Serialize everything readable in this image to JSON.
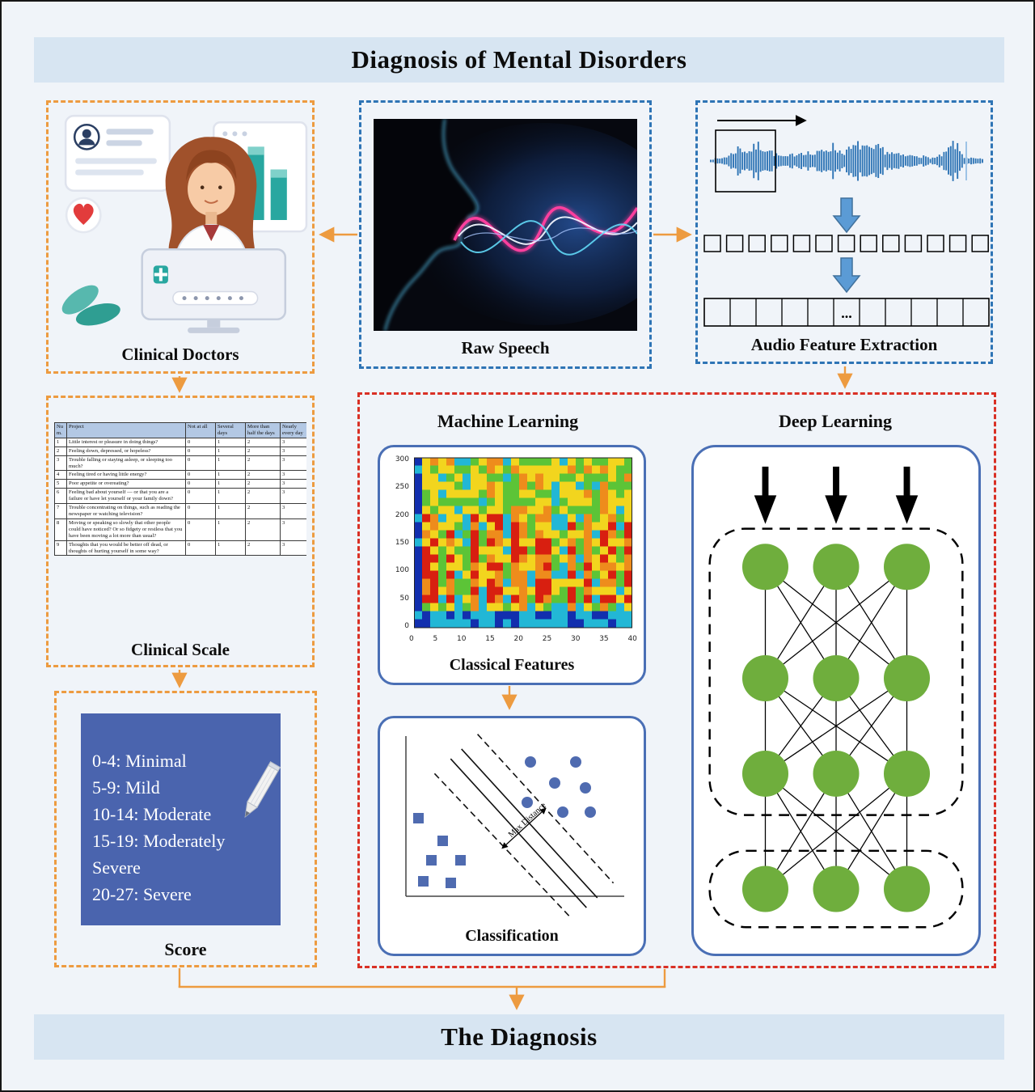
{
  "header": {
    "title": "Diagnosis of Mental Disorders"
  },
  "footer": {
    "label": "The Diagnosis"
  },
  "panels": {
    "clinical_doctors": {
      "label": "Clinical Doctors"
    },
    "raw_speech": {
      "label": "Raw Speech"
    },
    "audio": {
      "label": "Audio Feature Extraction",
      "ellipsis": "..."
    },
    "clinical_scale": {
      "label": "Clinical Scale",
      "table": {
        "headers": [
          "Num.",
          "Project",
          "Not at all",
          "Several days",
          "More than half the days",
          "Nearly every day"
        ],
        "rows": [
          {
            "num": "1",
            "project": "Little interest or pleasure in doing things?",
            "values": [
              "0",
              "1",
              "2",
              "3"
            ]
          },
          {
            "num": "2",
            "project": "Feeling down, depressed, or hopeless?",
            "values": [
              "0",
              "1",
              "2",
              "3"
            ]
          },
          {
            "num": "3",
            "project": "Trouble falling or staying asleep, or sleeping too much?",
            "values": [
              "0",
              "1",
              "2",
              "3"
            ]
          },
          {
            "num": "4",
            "project": "Feeling tired or having little energy?",
            "values": [
              "0",
              "1",
              "2",
              "3"
            ]
          },
          {
            "num": "5",
            "project": "Poor appetite or overeating?",
            "values": [
              "0",
              "1",
              "2",
              "3"
            ]
          },
          {
            "num": "6",
            "project": "Feeling bad about yourself — or that you are a failure or have let yourself or your family down?",
            "values": [
              "0",
              "1",
              "2",
              "3"
            ]
          },
          {
            "num": "7",
            "project": "Trouble concentrating on things, such as reading the newspaper or watching television?",
            "values": [
              "0",
              "1",
              "2",
              "3"
            ]
          },
          {
            "num": "8",
            "project": "Moving or speaking so slowly that other people could have noticed? Or so fidgety or restless that you have been moving a lot more than usual?",
            "values": [
              "0",
              "1",
              "2",
              "3"
            ]
          },
          {
            "num": "9",
            "project": "Thoughts that you would be better off dead, or thoughts of hurting yourself in some way?",
            "values": [
              "0",
              "1",
              "2",
              "3"
            ]
          }
        ]
      }
    },
    "score": {
      "label": "Score",
      "lines": [
        "0-4: Minimal",
        "5-9: Mild",
        "10-14: Moderate",
        "15-19: Moderately",
        "Severe",
        "20-27: Severe"
      ]
    }
  },
  "ml": {
    "heading": "Machine Learning",
    "classical_features": {
      "label": "Classical Features",
      "y_ticks": [
        "300",
        "250",
        "200",
        "150",
        "100",
        "50",
        "0"
      ],
      "x_ticks": [
        "0",
        "5",
        "10",
        "15",
        "20",
        "25",
        "30",
        "35",
        "40"
      ]
    },
    "classification": {
      "label": "Classification",
      "annotation": "Max Distance"
    }
  },
  "dl": {
    "heading": "Deep Learning"
  },
  "colors": {
    "accent_orange": "#ED9B40",
    "accent_blue": "#2E74B5",
    "accent_red": "#D93025",
    "node_green": "#6FAE3D",
    "score_blue": "#4A64AE",
    "banner_blue": "#D7E5F2",
    "waveform_blue": "#2E74B5"
  }
}
